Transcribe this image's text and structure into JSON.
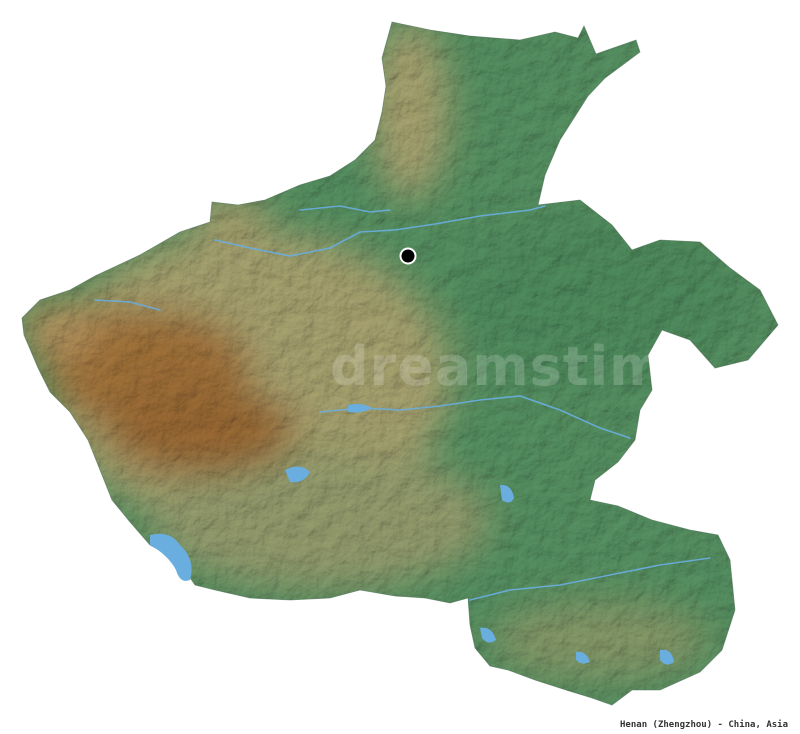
{
  "caption": "Henan (Zhengzhou) - China, Asia",
  "watermark": "dreamstime",
  "colors": {
    "background": "#ffffff",
    "plain": "#5c9e6a",
    "hills": "#b9b47a",
    "mountains": "#b07a38",
    "water": "#6aaee0",
    "capital_marker": "#000000"
  }
}
